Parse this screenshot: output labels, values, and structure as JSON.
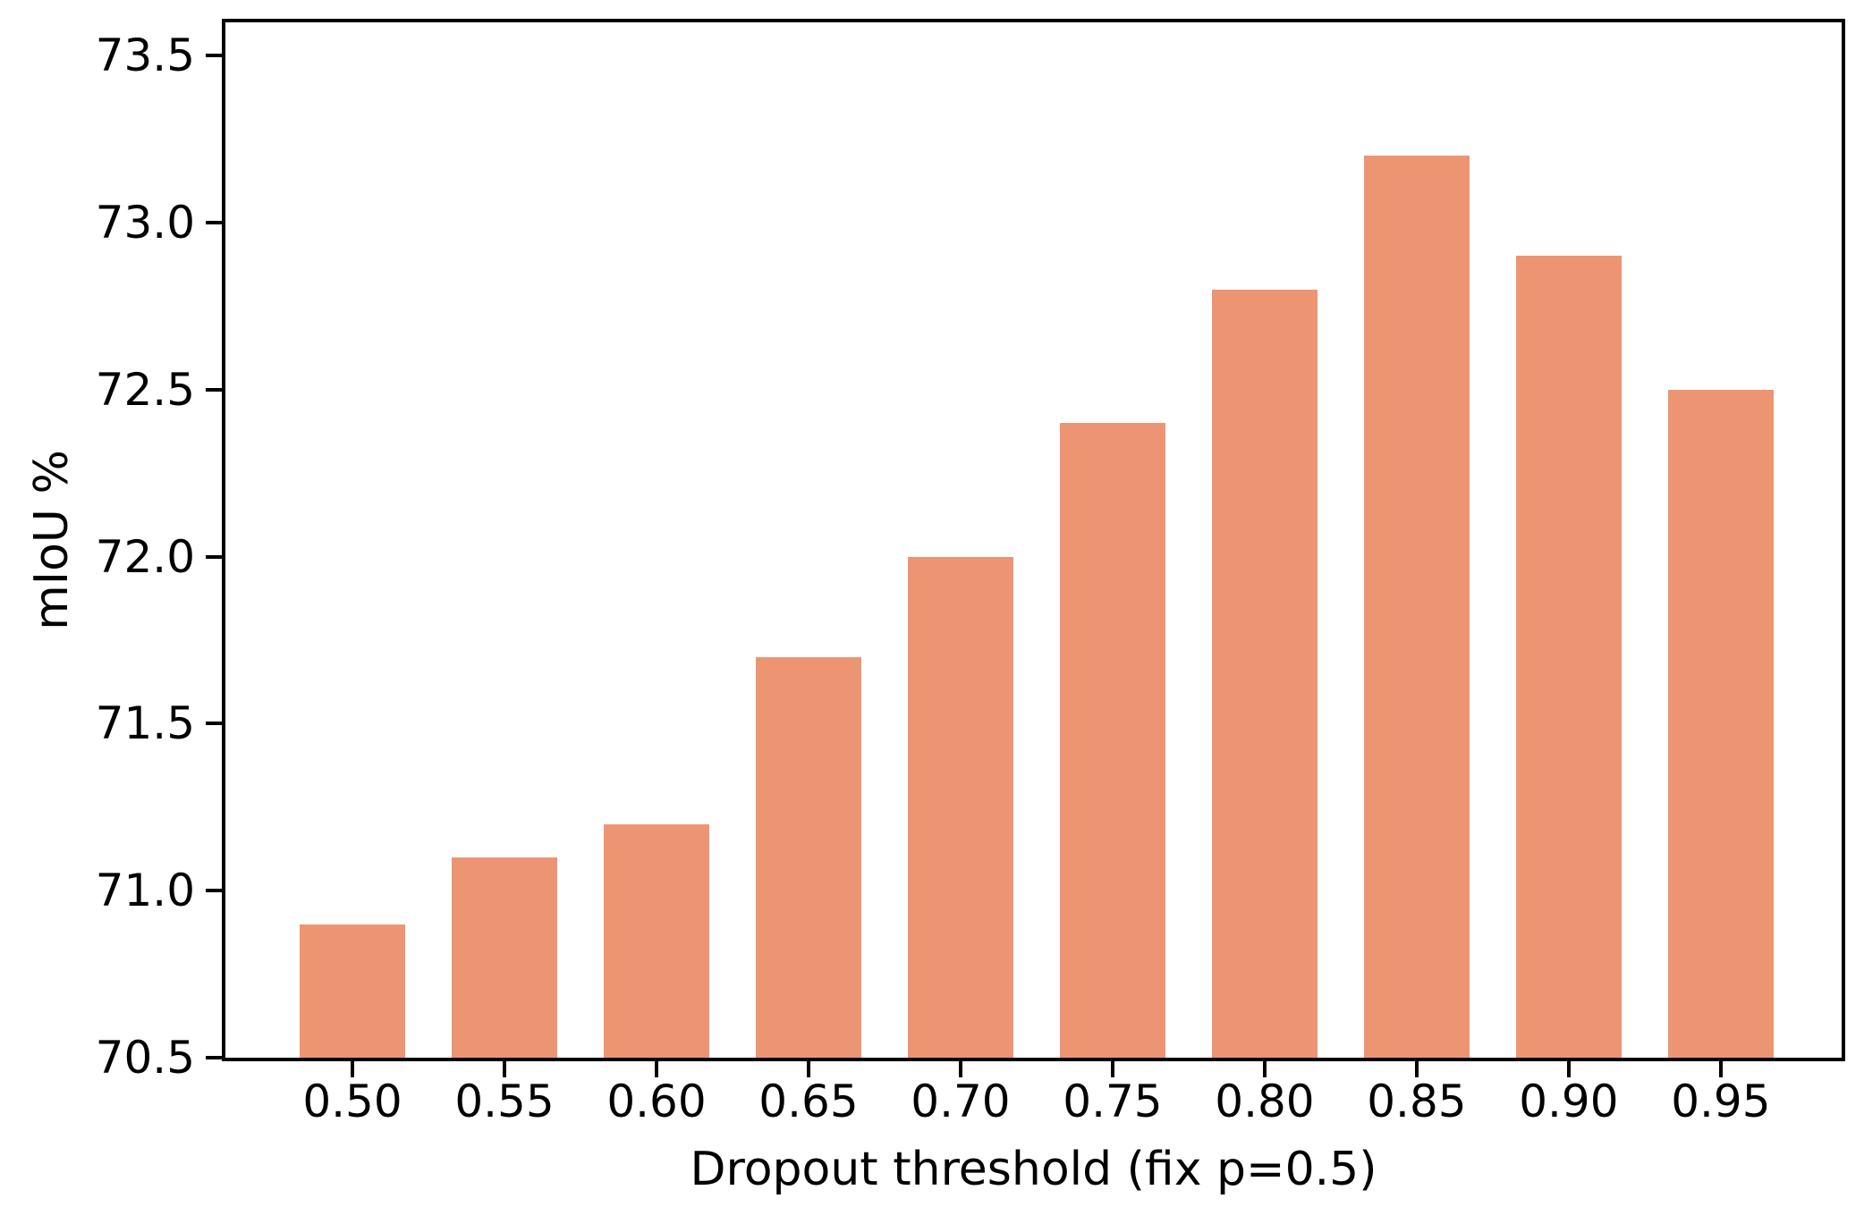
{
  "chart_data": {
    "type": "bar",
    "title": "",
    "categories": [
      "0.50",
      "0.55",
      "0.60",
      "0.65",
      "0.70",
      "0.75",
      "0.80",
      "0.85",
      "0.90",
      "0.95"
    ],
    "values": [
      70.9,
      71.1,
      71.2,
      71.7,
      72.0,
      72.4,
      72.8,
      73.2,
      72.9,
      72.5
    ],
    "xlabel": "Dropout threshold (fix p=0.5)",
    "ylabel": "mIoU %",
    "ylim": [
      70.5,
      73.6
    ],
    "yticks": [
      70.5,
      71.0,
      71.5,
      72.0,
      72.5,
      73.0,
      73.5
    ],
    "ytick_labels": [
      "70.5",
      "71.0",
      "71.5",
      "72.0",
      "72.5",
      "73.0",
      "73.5"
    ],
    "bar_color": "#ed9573",
    "axis_color": "#000000",
    "grid": false,
    "legend": null
  }
}
